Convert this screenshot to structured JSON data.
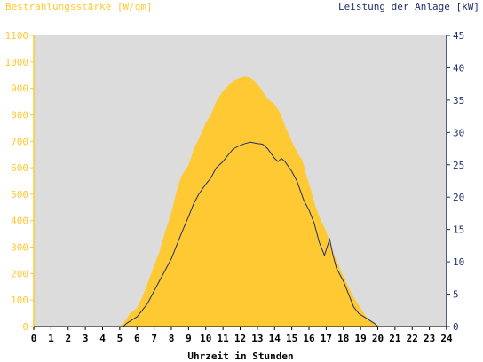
{
  "chart_data": {
    "type": "area",
    "left_axis_label": "Bestrahlungsstärke [W/qm]",
    "right_axis_label": "Leistung der Anlage [kW]",
    "xlabel": "Uhrzeit in Stunden",
    "xlim": [
      0,
      24
    ],
    "ylim_left": [
      0,
      1100
    ],
    "ylim_right": [
      0,
      45
    ],
    "x_ticks": [
      "0",
      "1",
      "2",
      "3",
      "4",
      "5",
      "6",
      "7",
      "8",
      "9",
      "10",
      "11",
      "12",
      "13",
      "14",
      "15",
      "16",
      "17",
      "18",
      "19",
      "20",
      "21",
      "22",
      "23",
      "24"
    ],
    "left_ticks": [
      "0",
      "100",
      "200",
      "300",
      "400",
      "500",
      "600",
      "700",
      "800",
      "900",
      "1000",
      "1100"
    ],
    "right_ticks": [
      "0",
      "5",
      "10",
      "15",
      "20",
      "25",
      "30",
      "35",
      "40",
      "45"
    ],
    "grid": false,
    "colors": {
      "irradiance_fill": "#FFC933",
      "power_line": "#1F2F6B",
      "plot_background": "#DCDCDC",
      "left_axis_text": "#FFC933",
      "right_axis_text": "#1F2F6B",
      "xaxis_text": "#000000"
    },
    "series": [
      {
        "name": "Bestrahlungsstärke",
        "axis": "left",
        "style": "area",
        "x": [
          5.0,
          5.3,
          5.6,
          6.0,
          6.3,
          6.6,
          7.0,
          7.3,
          7.6,
          8.0,
          8.3,
          8.6,
          9.0,
          9.3,
          9.6,
          10.0,
          10.3,
          10.6,
          11.0,
          11.3,
          11.6,
          12.0,
          12.3,
          12.6,
          12.9,
          13.2,
          13.4,
          13.6,
          14.0,
          14.3,
          14.6,
          15.0,
          15.3,
          15.6,
          15.9,
          16.1,
          16.4,
          16.7,
          17.0,
          17.3,
          17.6,
          18.0,
          18.3,
          18.6,
          19.0,
          19.3,
          19.6,
          19.9,
          20.2
        ],
        "y": [
          0,
          20,
          50,
          70,
          110,
          160,
          230,
          280,
          350,
          430,
          510,
          570,
          610,
          670,
          710,
          770,
          800,
          850,
          890,
          910,
          930,
          940,
          945,
          940,
          925,
          900,
          880,
          860,
          840,
          810,
          760,
          700,
          660,
          630,
          560,
          520,
          450,
          400,
          360,
          300,
          250,
          190,
          150,
          110,
          70,
          40,
          20,
          8,
          0
        ]
      },
      {
        "name": "Leistung der Anlage",
        "axis": "right",
        "style": "line",
        "x": [
          5.2,
          5.4,
          5.7,
          6.0,
          6.3,
          6.6,
          7.0,
          7.3,
          7.6,
          8.0,
          8.3,
          8.6,
          9.0,
          9.3,
          9.6,
          10.0,
          10.3,
          10.6,
          11.0,
          11.3,
          11.6,
          12.0,
          12.3,
          12.6,
          13.0,
          13.3,
          13.6,
          14.0,
          14.2,
          14.4,
          14.6,
          15.0,
          15.3,
          15.5,
          15.7,
          16.0,
          16.3,
          16.6,
          16.9,
          17.2,
          17.4,
          17.6,
          18.0,
          18.3,
          18.6,
          18.9,
          19.2,
          19.5,
          19.8,
          20.0
        ],
        "y": [
          0,
          0.5,
          1,
          1.5,
          2.5,
          3.5,
          5.5,
          7,
          8.5,
          10.5,
          12.5,
          14.5,
          17,
          19,
          20.5,
          22,
          23,
          24.5,
          25.5,
          26.5,
          27.5,
          28,
          28.3,
          28.5,
          28.3,
          28.2,
          27.5,
          26,
          25.5,
          26,
          25.5,
          24,
          22.5,
          21,
          19.5,
          18,
          16,
          13,
          11,
          13.5,
          11,
          9,
          7,
          5,
          3,
          2,
          1.5,
          1,
          0.5,
          0
        ]
      }
    ]
  }
}
